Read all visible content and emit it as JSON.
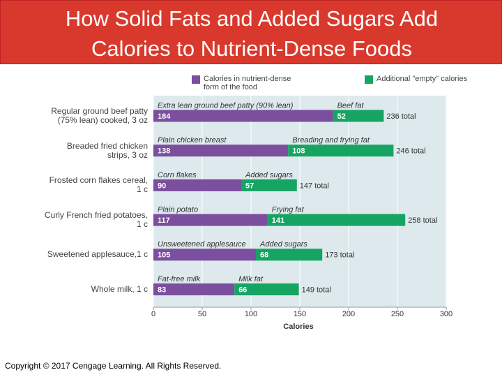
{
  "chart_data": {
    "type": "stacked-bar",
    "title": "How Solid Fats and Added Sugars Add Calories to Nutrient-Dense Foods",
    "categories": [
      "Regular ground beef patty (75% lean) cooked, 3 oz",
      "Breaded fried chicken strips, 3 oz",
      "Frosted corn flakes cereal, 1 c",
      "Curly French fried potatoes, 1 c",
      "Sweetened applesauce,1 c",
      "Whole milk, 1 c"
    ],
    "series": [
      {
        "name": "Calories in nutrient-dense form of the food",
        "color": "#7b4e9e",
        "values": [
          184,
          138,
          90,
          117,
          105,
          83
        ],
        "segment_labels": [
          "Extra lean ground beef patty (90% lean)",
          "Plain chicken breast",
          "Corn flakes",
          "Plain potato",
          "Unsweetened applesauce",
          "Fat-free milk"
        ]
      },
      {
        "name": "Additional \"empty\" calories",
        "color": "#16a463",
        "values": [
          52,
          108,
          57,
          141,
          68,
          66
        ],
        "segment_labels": [
          "Beef fat",
          "Breading and frying fat",
          "Added sugars",
          "Frying fat",
          "Added sugars",
          "Milk fat"
        ]
      }
    ],
    "totals": {
      "values": [
        236,
        246,
        147,
        258,
        173,
        149
      ],
      "value_labels": [
        "236 total",
        "246 total",
        "147 total",
        "258 total",
        "173 total",
        "149 total"
      ]
    },
    "xlabel": "Calories",
    "xlim": [
      0,
      300
    ],
    "xticks": [
      0,
      50,
      100,
      150,
      200,
      250,
      300
    ],
    "grid": true
  },
  "footer": "Copyright © 2017 Cengage Learning. All Rights Reserved."
}
